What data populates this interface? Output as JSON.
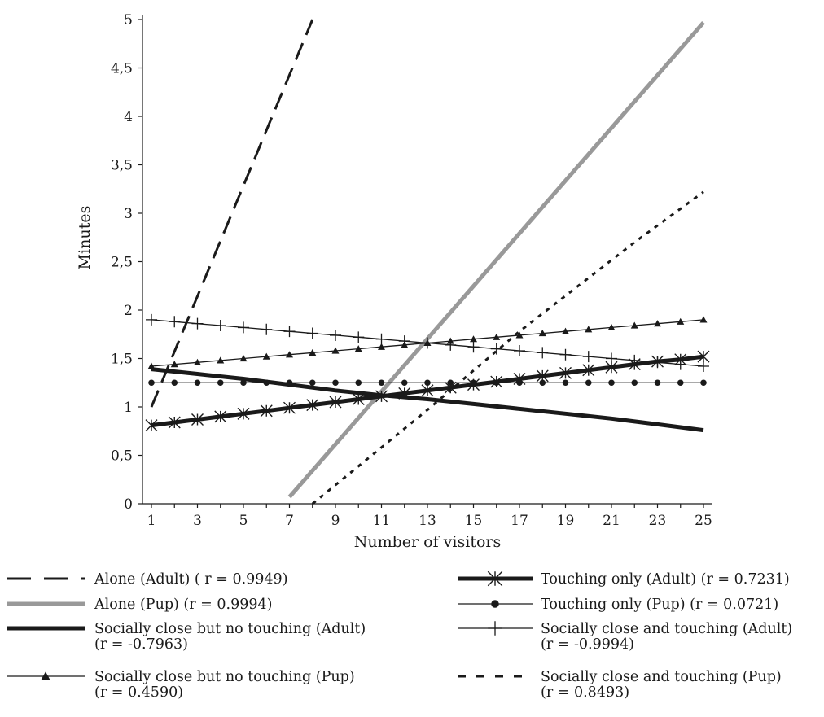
{
  "chart_data": {
    "type": "line",
    "title": "",
    "xlabel": "Number of visitors",
    "ylabel": "Minutes",
    "x_ticks": [
      1,
      3,
      5,
      7,
      9,
      11,
      13,
      15,
      17,
      19,
      21,
      23,
      25
    ],
    "x_range": [
      1,
      25
    ],
    "y_ticks": [
      "0",
      "0,5",
      "1",
      "1,5",
      "2",
      "2,5",
      "3",
      "3,5",
      "4",
      "4,5",
      "5"
    ],
    "y_range": [
      0,
      5
    ],
    "grid": false,
    "legend_position": "bottom",
    "series": [
      {
        "name": "Alone (Adult) ( r = 0.9949)",
        "style": "long-dash",
        "color": "#1a1a1a",
        "x": [
          1,
          8
        ],
        "y": [
          1.0,
          5.0
        ]
      },
      {
        "name": "Alone (Pup) (r = 0.9994)",
        "style": "solid-thick",
        "color": "#999999",
        "x": [
          7,
          25
        ],
        "y": [
          0.07,
          4.97
        ]
      },
      {
        "name": "Socially close but no touching (Adult) (r = -0.7963)",
        "style": "solid-thick",
        "color": "#1a1a1a",
        "x": [
          1,
          3,
          5,
          7,
          9,
          11,
          13,
          15,
          17,
          19,
          21,
          23,
          25
        ],
        "y": [
          1.39,
          1.34,
          1.29,
          1.23,
          1.17,
          1.12,
          1.08,
          1.03,
          0.98,
          0.93,
          0.88,
          0.82,
          0.76
        ]
      },
      {
        "name": "Socially close but no touching (Pup) (r = 0.4590)",
        "style": "triangle-markers",
        "color": "#1a1a1a",
        "x": [
          1,
          2,
          3,
          4,
          5,
          6,
          7,
          8,
          9,
          10,
          11,
          12,
          13,
          14,
          15,
          16,
          17,
          18,
          19,
          20,
          21,
          22,
          23,
          24,
          25
        ],
        "y": [
          1.42,
          1.44,
          1.46,
          1.48,
          1.5,
          1.52,
          1.54,
          1.56,
          1.58,
          1.6,
          1.62,
          1.64,
          1.66,
          1.68,
          1.7,
          1.72,
          1.74,
          1.76,
          1.78,
          1.8,
          1.82,
          1.84,
          1.86,
          1.88,
          1.9
        ]
      },
      {
        "name": "Touching only (Adult) (r = 0.7231)",
        "style": "thick-asterisk-markers",
        "color": "#1a1a1a",
        "x": [
          1,
          2,
          3,
          4,
          5,
          6,
          7,
          8,
          9,
          10,
          11,
          12,
          13,
          14,
          15,
          16,
          17,
          18,
          19,
          20,
          21,
          22,
          23,
          24,
          25
        ],
        "y": [
          0.81,
          0.84,
          0.87,
          0.9,
          0.93,
          0.96,
          0.99,
          1.02,
          1.05,
          1.08,
          1.11,
          1.14,
          1.17,
          1.2,
          1.23,
          1.26,
          1.29,
          1.32,
          1.35,
          1.38,
          1.41,
          1.44,
          1.47,
          1.49,
          1.52
        ]
      },
      {
        "name": "Touching only (Pup) (r = 0.0721)",
        "style": "circle-markers",
        "color": "#1a1a1a",
        "x": [
          1,
          2,
          3,
          4,
          5,
          6,
          7,
          8,
          9,
          10,
          11,
          12,
          13,
          14,
          15,
          16,
          17,
          18,
          19,
          20,
          21,
          22,
          23,
          24,
          25
        ],
        "y": [
          1.25,
          1.25,
          1.25,
          1.25,
          1.25,
          1.25,
          1.25,
          1.25,
          1.25,
          1.25,
          1.25,
          1.25,
          1.25,
          1.25,
          1.25,
          1.25,
          1.25,
          1.25,
          1.25,
          1.25,
          1.25,
          1.25,
          1.25,
          1.25,
          1.25
        ]
      },
      {
        "name": "Socially close and touching (Adult) (r = -0.9994)",
        "style": "plus-markers",
        "color": "#1a1a1a",
        "x": [
          1,
          2,
          3,
          4,
          5,
          6,
          7,
          8,
          9,
          10,
          11,
          12,
          13,
          14,
          15,
          16,
          17,
          18,
          19,
          20,
          21,
          22,
          23,
          24,
          25
        ],
        "y": [
          1.9,
          1.88,
          1.86,
          1.84,
          1.82,
          1.8,
          1.78,
          1.76,
          1.74,
          1.72,
          1.7,
          1.68,
          1.66,
          1.64,
          1.62,
          1.6,
          1.58,
          1.56,
          1.54,
          1.52,
          1.5,
          1.48,
          1.46,
          1.44,
          1.42
        ]
      },
      {
        "name": "Socially close and touching (Pup) (r = 0.8493)",
        "style": "short-dash",
        "color": "#1a1a1a",
        "x": [
          8,
          13,
          17,
          22,
          25
        ],
        "y": [
          0.0,
          0.97,
          1.78,
          2.7,
          3.22
        ]
      }
    ],
    "legend": [
      {
        "series": 0,
        "line1": "Alone (Adult) ( r = 0.9949)",
        "line2": ""
      },
      {
        "series": 1,
        "line1": "Alone (Pup) (r = 0.9994)",
        "line2": ""
      },
      {
        "series": 2,
        "line1": "Socially close but no touching (Adult)",
        "line2": "(r = -0.7963)"
      },
      {
        "series": 3,
        "line1": "Socially close but no touching (Pup)",
        "line2": "(r = 0.4590)"
      },
      {
        "series": 4,
        "line1": "Touching only (Adult) (r = 0.7231)",
        "line2": ""
      },
      {
        "series": 5,
        "line1": "Touching only (Pup) (r = 0.0721)",
        "line2": ""
      },
      {
        "series": 6,
        "line1": "Socially close and touching (Adult)",
        "line2": "(r = -0.9994)"
      },
      {
        "series": 7,
        "line1": "Socially close and touching (Pup)",
        "line2": "(r = 0.8493)"
      }
    ]
  }
}
